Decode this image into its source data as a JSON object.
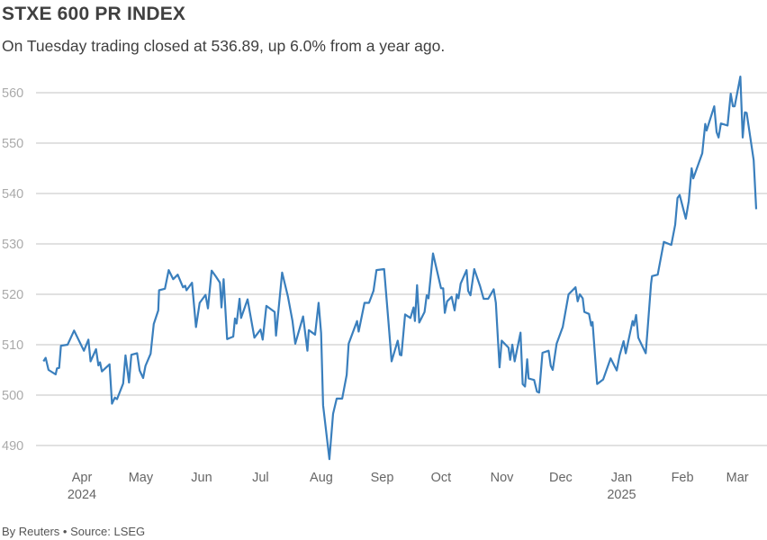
{
  "chart_data": {
    "type": "line",
    "title": "STXE 600 PR INDEX",
    "subtitle": "On Tuesday trading closed at 536.89, up 6.0% from a year ago.",
    "footer": "By Reuters • Source: LSEG",
    "xlabel": "",
    "ylabel": "",
    "x_unit": "days since 2024-04-01",
    "ylim": [
      485,
      565
    ],
    "yticks": [
      490,
      500,
      510,
      520,
      530,
      540,
      550,
      560
    ],
    "grid": true,
    "legend": "none",
    "line_color": "#3a7fbd",
    "xticks": [
      {
        "label": "Apr",
        "sublabel": "2024",
        "day": 0
      },
      {
        "label": "May",
        "day": 30
      },
      {
        "label": "Jun",
        "day": 61
      },
      {
        "label": "Jul",
        "day": 91
      },
      {
        "label": "Aug",
        "day": 122
      },
      {
        "label": "Sep",
        "day": 153
      },
      {
        "label": "Oct",
        "day": 183
      },
      {
        "label": "Nov",
        "day": 214
      },
      {
        "label": "Dec",
        "day": 244
      },
      {
        "label": "Jan",
        "sublabel": "2025",
        "day": 275
      },
      {
        "label": "Feb",
        "day": 306
      },
      {
        "label": "Mar",
        "day": 334
      }
    ],
    "series": [
      {
        "name": "STXE 600 PR INDEX",
        "points": [
          [
            -19.6,
            506.7
          ],
          [
            -18.5,
            507.4
          ],
          [
            -17,
            505
          ],
          [
            -13.4,
            504.1
          ],
          [
            -12.7,
            505.3
          ],
          [
            -11.6,
            505.4
          ],
          [
            -10.7,
            509.8
          ],
          [
            -7.3,
            510
          ],
          [
            -4,
            512.8
          ],
          [
            1,
            508.8
          ],
          [
            3.3,
            511
          ],
          [
            4.4,
            506.7
          ],
          [
            7.2,
            509.1
          ],
          [
            8.4,
            505.9
          ],
          [
            9.2,
            506.5
          ],
          [
            10.2,
            504.7
          ],
          [
            14.1,
            506.1
          ],
          [
            15.3,
            498.3
          ],
          [
            16.8,
            499.5
          ],
          [
            17.9,
            499.2
          ],
          [
            21,
            502.3
          ],
          [
            22.2,
            507.9
          ],
          [
            24,
            502.5
          ],
          [
            25.2,
            508
          ],
          [
            28.1,
            508.3
          ],
          [
            29.4,
            504.9
          ],
          [
            31.2,
            503.4
          ],
          [
            32.4,
            505.8
          ],
          [
            35,
            508.2
          ],
          [
            36.6,
            514.1
          ],
          [
            38.9,
            516.8
          ],
          [
            39.3,
            520.8
          ],
          [
            42.3,
            521.1
          ],
          [
            44.2,
            524.8
          ],
          [
            46.5,
            523
          ],
          [
            48.8,
            523.9
          ],
          [
            51.5,
            521.4
          ],
          [
            52.6,
            521.7
          ],
          [
            53.3,
            520.8
          ],
          [
            56.1,
            522.3
          ],
          [
            58.1,
            513.5
          ],
          [
            60,
            518.3
          ],
          [
            63,
            519.9
          ],
          [
            64.2,
            517.2
          ],
          [
            66.1,
            524.7
          ],
          [
            68.3,
            523.5
          ],
          [
            70.3,
            522.3
          ],
          [
            71.1,
            517.4
          ],
          [
            72.2,
            523
          ],
          [
            74,
            511.1
          ],
          [
            77.1,
            511.6
          ],
          [
            78,
            515.2
          ],
          [
            78.8,
            514.2
          ],
          [
            80.3,
            519.1
          ],
          [
            81.1,
            515.3
          ],
          [
            84.4,
            519
          ],
          [
            87.9,
            511.4
          ],
          [
            91,
            513
          ],
          [
            92.1,
            511
          ],
          [
            94,
            517.7
          ],
          [
            98.2,
            516.5
          ],
          [
            98.9,
            511.8
          ],
          [
            102,
            524.3
          ],
          [
            105,
            519.5
          ],
          [
            107.3,
            514.7
          ],
          [
            108.7,
            510.2
          ],
          [
            112.7,
            515.6
          ],
          [
            114.9,
            508.8
          ],
          [
            115.6,
            512.9
          ],
          [
            118.8,
            512
          ],
          [
            120.6,
            518.3
          ],
          [
            121.9,
            512.3
          ],
          [
            122.9,
            498
          ],
          [
            126.1,
            487.3
          ],
          [
            128,
            496.3
          ],
          [
            129.8,
            499.3
          ],
          [
            132.6,
            499.3
          ],
          [
            134.9,
            504
          ],
          [
            135.9,
            510.2
          ],
          [
            140.2,
            514.7
          ],
          [
            141,
            512.6
          ],
          [
            144,
            518.3
          ],
          [
            146.3,
            518.3
          ],
          [
            148.6,
            520.7
          ],
          [
            150.1,
            524.8
          ],
          [
            154,
            525
          ],
          [
            156.3,
            514.1
          ],
          [
            157.8,
            506.7
          ],
          [
            160.9,
            510.8
          ],
          [
            162,
            508
          ],
          [
            162.8,
            507.9
          ],
          [
            164.7,
            516
          ],
          [
            167.4,
            515.3
          ],
          [
            169,
            517.4
          ],
          [
            169.7,
            514.7
          ],
          [
            170.8,
            521.8
          ],
          [
            171.9,
            514.4
          ],
          [
            174.6,
            516.5
          ],
          [
            175.7,
            519.8
          ],
          [
            176.6,
            519.2
          ],
          [
            178.9,
            528.1
          ],
          [
            183,
            521.2
          ],
          [
            184.1,
            521.2
          ],
          [
            184.9,
            516.3
          ],
          [
            186.1,
            518.6
          ],
          [
            188.4,
            519.5
          ],
          [
            189.9,
            516.8
          ],
          [
            191,
            520
          ],
          [
            191.9,
            519.2
          ],
          [
            193,
            522.1
          ],
          [
            196,
            524.8
          ],
          [
            196.8,
            520.7
          ],
          [
            198,
            519.8
          ],
          [
            199.9,
            525
          ],
          [
            202.9,
            521.6
          ],
          [
            204.7,
            519.1
          ],
          [
            207,
            519.1
          ],
          [
            209.8,
            521
          ],
          [
            210.9,
            518.3
          ],
          [
            212.8,
            505.5
          ],
          [
            213.9,
            510.8
          ],
          [
            217.4,
            509.4
          ],
          [
            218.2,
            507
          ],
          [
            219.3,
            510
          ],
          [
            220.5,
            506.7
          ],
          [
            223.5,
            512.4
          ],
          [
            224.6,
            502.2
          ],
          [
            225.8,
            501.7
          ],
          [
            226.9,
            507.1
          ],
          [
            227.6,
            503.3
          ],
          [
            230.4,
            503
          ],
          [
            231.9,
            500.7
          ],
          [
            233,
            500.5
          ],
          [
            234.7,
            508.4
          ],
          [
            237.8,
            508.8
          ],
          [
            238.9,
            505.8
          ],
          [
            239.9,
            505
          ],
          [
            241.9,
            510.2
          ],
          [
            245,
            513.5
          ],
          [
            248,
            520
          ],
          [
            251.5,
            521.4
          ],
          [
            252.6,
            518.6
          ],
          [
            253.7,
            520
          ],
          [
            255.2,
            519.2
          ],
          [
            256,
            516.5
          ],
          [
            258.4,
            516.1
          ],
          [
            259.5,
            513.8
          ],
          [
            260.2,
            514.5
          ],
          [
            262.5,
            502.2
          ],
          [
            265.6,
            503.1
          ],
          [
            269.4,
            507.3
          ],
          [
            272.5,
            504.9
          ],
          [
            274,
            507.9
          ],
          [
            276,
            510.7
          ],
          [
            277.1,
            508.3
          ],
          [
            280.6,
            514.7
          ],
          [
            281.3,
            513.8
          ],
          [
            282.4,
            515.9
          ],
          [
            283.5,
            511.4
          ],
          [
            287.3,
            508.3
          ],
          [
            288.2,
            512.9
          ],
          [
            290,
            522.1
          ],
          [
            290.5,
            523.6
          ],
          [
            293.4,
            523.9
          ],
          [
            296.5,
            530.4
          ],
          [
            300.3,
            529.8
          ],
          [
            302.3,
            533.8
          ],
          [
            303.5,
            539.1
          ],
          [
            304.6,
            539.7
          ],
          [
            307.7,
            535
          ],
          [
            309.2,
            538.5
          ],
          [
            310.7,
            545
          ],
          [
            311.5,
            543
          ],
          [
            316.1,
            548
          ],
          [
            317.6,
            553.8
          ],
          [
            318.3,
            552.5
          ],
          [
            322.2,
            557.3
          ],
          [
            323.4,
            552.2
          ],
          [
            324.4,
            551.1
          ],
          [
            325.6,
            553.9
          ],
          [
            329,
            553.5
          ],
          [
            330.6,
            559.8
          ],
          [
            331.7,
            557.3
          ],
          [
            332.6,
            557.3
          ],
          [
            335.5,
            563.2
          ],
          [
            336.7,
            551.1
          ],
          [
            337.8,
            556.1
          ],
          [
            338.7,
            556
          ],
          [
            342.3,
            546.6
          ],
          [
            343.6,
            536.89
          ]
        ]
      }
    ]
  }
}
